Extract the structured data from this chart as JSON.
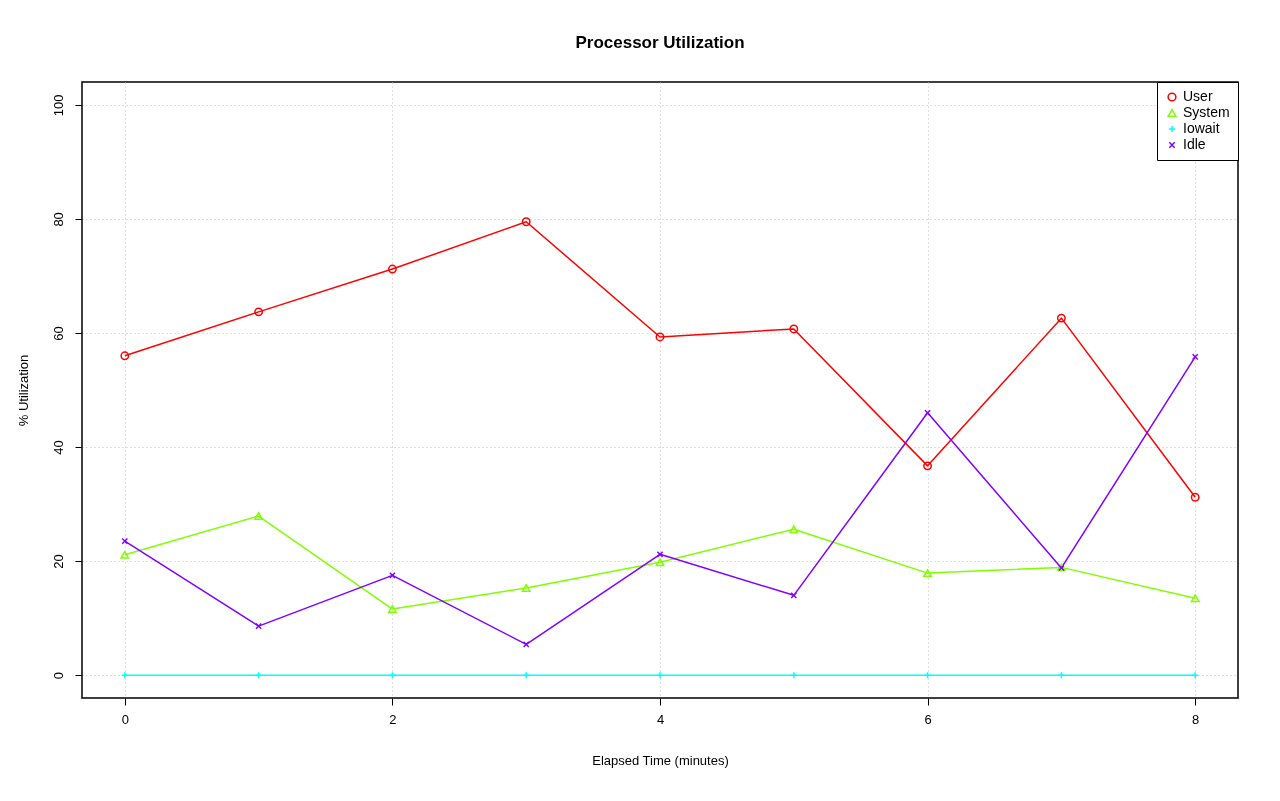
{
  "chart_data": {
    "type": "line",
    "title": "Processor Utilization",
    "xlabel": "Elapsed Time (minutes)",
    "ylabel": "% Utilization",
    "x": [
      0,
      1,
      2,
      3,
      4,
      5,
      6,
      7,
      8
    ],
    "xlim": [
      -0.32,
      8.32
    ],
    "xticks": [
      0,
      2,
      4,
      6,
      8
    ],
    "ylim": [
      -4,
      104
    ],
    "yticks": [
      0,
      20,
      40,
      60,
      80,
      100
    ],
    "grid": true,
    "legend": "top right",
    "line_style": "solid",
    "series": [
      {
        "name": "User",
        "color": "#ff0000",
        "marker": "circle",
        "values": [
          56.0,
          63.7,
          71.2,
          79.5,
          59.3,
          60.7,
          36.7,
          62.6,
          31.2
        ]
      },
      {
        "name": "System",
        "color": "#80ff00",
        "marker": "triangle",
        "values": [
          21.1,
          27.9,
          11.6,
          15.3,
          19.8,
          25.6,
          17.9,
          18.9,
          13.5
        ]
      },
      {
        "name": "Iowait",
        "color": "#00ffff",
        "marker": "cross",
        "values": [
          0,
          0,
          0,
          0,
          0,
          0,
          0,
          0,
          0
        ]
      },
      {
        "name": "Idle",
        "color": "#8000ff",
        "marker": "x",
        "values": [
          23.5,
          8.6,
          17.5,
          5.4,
          21.2,
          14.0,
          46.0,
          18.8,
          55.8
        ]
      }
    ]
  }
}
